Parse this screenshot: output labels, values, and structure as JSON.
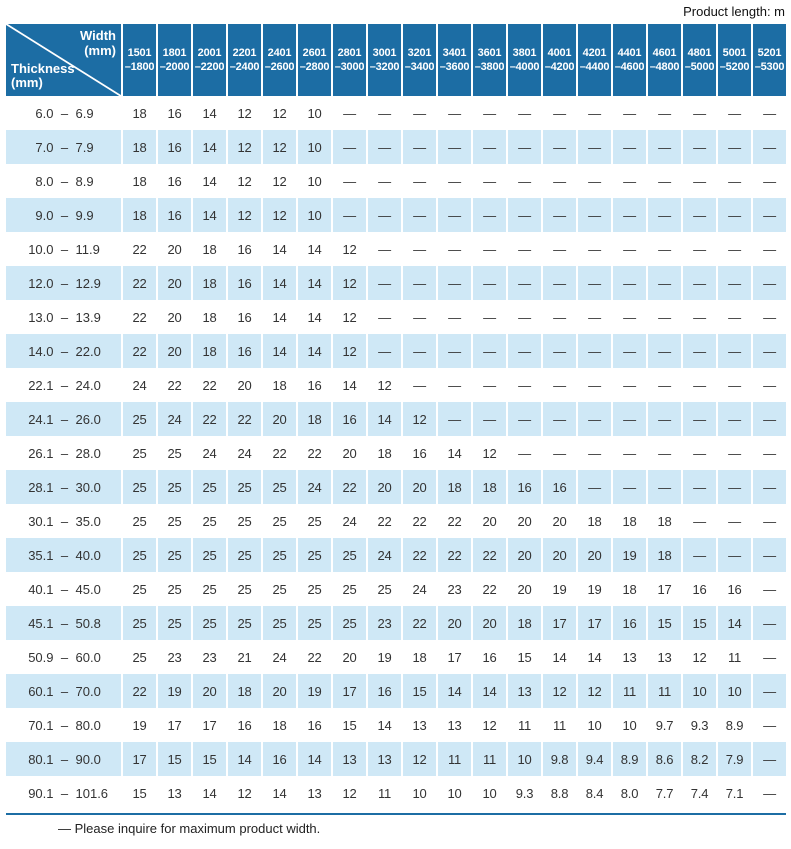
{
  "page": {
    "product_length_note": "Product length: m",
    "footer_note": "— Please inquire for maximum product width."
  },
  "colors": {
    "header_blue": "#1C6DA4",
    "stripe_blue": "#CFE8F6",
    "text": "#333333"
  },
  "table": {
    "corner": {
      "width_line1": "Width",
      "width_line2": "(mm)",
      "thickness_line1": "Thickness",
      "thickness_line2": "(mm)"
    },
    "range_separator": "–",
    "empty_marker": "—",
    "width_columns": [
      {
        "from": "1501",
        "to": "–1800"
      },
      {
        "from": "1801",
        "to": "–2000"
      },
      {
        "from": "2001",
        "to": "–2200"
      },
      {
        "from": "2201",
        "to": "–2400"
      },
      {
        "from": "2401",
        "to": "–2600"
      },
      {
        "from": "2601",
        "to": "–2800"
      },
      {
        "from": "2801",
        "to": "–3000"
      },
      {
        "from": "3001",
        "to": "–3200"
      },
      {
        "from": "3201",
        "to": "–3400"
      },
      {
        "from": "3401",
        "to": "–3600"
      },
      {
        "from": "3601",
        "to": "–3800"
      },
      {
        "from": "3801",
        "to": "–4000"
      },
      {
        "from": "4001",
        "to": "–4200"
      },
      {
        "from": "4201",
        "to": "–4400"
      },
      {
        "from": "4401",
        "to": "–4600"
      },
      {
        "from": "4601",
        "to": "–4800"
      },
      {
        "from": "4801",
        "to": "–5000"
      },
      {
        "from": "5001",
        "to": "–5200"
      },
      {
        "from": "5201",
        "to": "–5300"
      }
    ],
    "rows": [
      {
        "thickness_min": "6.0",
        "thickness_max": "6.9",
        "values": [
          "18",
          "16",
          "14",
          "12",
          "12",
          "10",
          "—",
          "—",
          "—",
          "—",
          "—",
          "—",
          "—",
          "—",
          "—",
          "—",
          "—",
          "—",
          "—"
        ]
      },
      {
        "thickness_min": "7.0",
        "thickness_max": "7.9",
        "values": [
          "18",
          "16",
          "14",
          "12",
          "12",
          "10",
          "—",
          "—",
          "—",
          "—",
          "—",
          "—",
          "—",
          "—",
          "—",
          "—",
          "—",
          "—",
          "—"
        ]
      },
      {
        "thickness_min": "8.0",
        "thickness_max": "8.9",
        "values": [
          "18",
          "16",
          "14",
          "12",
          "12",
          "10",
          "—",
          "—",
          "—",
          "—",
          "—",
          "—",
          "—",
          "—",
          "—",
          "—",
          "—",
          "—",
          "—"
        ]
      },
      {
        "thickness_min": "9.0",
        "thickness_max": "9.9",
        "values": [
          "18",
          "16",
          "14",
          "12",
          "12",
          "10",
          "—",
          "—",
          "—",
          "—",
          "—",
          "—",
          "—",
          "—",
          "—",
          "—",
          "—",
          "—",
          "—"
        ]
      },
      {
        "thickness_min": "10.0",
        "thickness_max": "11.9",
        "values": [
          "22",
          "20",
          "18",
          "16",
          "14",
          "14",
          "12",
          "—",
          "—",
          "—",
          "—",
          "—",
          "—",
          "—",
          "—",
          "—",
          "—",
          "—",
          "—"
        ]
      },
      {
        "thickness_min": "12.0",
        "thickness_max": "12.9",
        "values": [
          "22",
          "20",
          "18",
          "16",
          "14",
          "14",
          "12",
          "—",
          "—",
          "—",
          "—",
          "—",
          "—",
          "—",
          "—",
          "—",
          "—",
          "—",
          "—"
        ]
      },
      {
        "thickness_min": "13.0",
        "thickness_max": "13.9",
        "values": [
          "22",
          "20",
          "18",
          "16",
          "14",
          "14",
          "12",
          "—",
          "—",
          "—",
          "—",
          "—",
          "—",
          "—",
          "—",
          "—",
          "—",
          "—",
          "—"
        ]
      },
      {
        "thickness_min": "14.0",
        "thickness_max": "22.0",
        "values": [
          "22",
          "20",
          "18",
          "16",
          "14",
          "14",
          "12",
          "—",
          "—",
          "—",
          "—",
          "—",
          "—",
          "—",
          "—",
          "—",
          "—",
          "—",
          "—"
        ]
      },
      {
        "thickness_min": "22.1",
        "thickness_max": "24.0",
        "values": [
          "24",
          "22",
          "22",
          "20",
          "18",
          "16",
          "14",
          "12",
          "—",
          "—",
          "—",
          "—",
          "—",
          "—",
          "—",
          "—",
          "—",
          "—",
          "—"
        ]
      },
      {
        "thickness_min": "24.1",
        "thickness_max": "26.0",
        "values": [
          "25",
          "24",
          "22",
          "22",
          "20",
          "18",
          "16",
          "14",
          "12",
          "—",
          "—",
          "—",
          "—",
          "—",
          "—",
          "—",
          "—",
          "—",
          "—"
        ]
      },
      {
        "thickness_min": "26.1",
        "thickness_max": "28.0",
        "values": [
          "25",
          "25",
          "24",
          "24",
          "22",
          "22",
          "20",
          "18",
          "16",
          "14",
          "12",
          "—",
          "—",
          "—",
          "—",
          "—",
          "—",
          "—",
          "—"
        ]
      },
      {
        "thickness_min": "28.1",
        "thickness_max": "30.0",
        "values": [
          "25",
          "25",
          "25",
          "25",
          "25",
          "24",
          "22",
          "20",
          "20",
          "18",
          "18",
          "16",
          "16",
          "—",
          "—",
          "—",
          "—",
          "—",
          "—"
        ]
      },
      {
        "thickness_min": "30.1",
        "thickness_max": "35.0",
        "values": [
          "25",
          "25",
          "25",
          "25",
          "25",
          "25",
          "24",
          "22",
          "22",
          "22",
          "20",
          "20",
          "20",
          "18",
          "18",
          "18",
          "—",
          "—",
          "—"
        ]
      },
      {
        "thickness_min": "35.1",
        "thickness_max": "40.0",
        "values": [
          "25",
          "25",
          "25",
          "25",
          "25",
          "25",
          "25",
          "24",
          "22",
          "22",
          "22",
          "20",
          "20",
          "20",
          "19",
          "18",
          "—",
          "—",
          "—"
        ]
      },
      {
        "thickness_min": "40.1",
        "thickness_max": "45.0",
        "values": [
          "25",
          "25",
          "25",
          "25",
          "25",
          "25",
          "25",
          "25",
          "24",
          "23",
          "22",
          "20",
          "19",
          "19",
          "18",
          "17",
          "16",
          "16",
          "—"
        ]
      },
      {
        "thickness_min": "45.1",
        "thickness_max": "50.8",
        "values": [
          "25",
          "25",
          "25",
          "25",
          "25",
          "25",
          "25",
          "23",
          "22",
          "20",
          "20",
          "18",
          "17",
          "17",
          "16",
          "15",
          "15",
          "14",
          "—"
        ]
      },
      {
        "thickness_min": "50.9",
        "thickness_max": "60.0",
        "values": [
          "25",
          "23",
          "23",
          "21",
          "24",
          "22",
          "20",
          "19",
          "18",
          "17",
          "16",
          "15",
          "14",
          "14",
          "13",
          "13",
          "12",
          "11",
          "—"
        ]
      },
      {
        "thickness_min": "60.1",
        "thickness_max": "70.0",
        "values": [
          "22",
          "19",
          "20",
          "18",
          "20",
          "19",
          "17",
          "16",
          "15",
          "14",
          "14",
          "13",
          "12",
          "12",
          "11",
          "11",
          "10",
          "10",
          "—"
        ]
      },
      {
        "thickness_min": "70.1",
        "thickness_max": "80.0",
        "values": [
          "19",
          "17",
          "17",
          "16",
          "18",
          "16",
          "15",
          "14",
          "13",
          "13",
          "12",
          "11",
          "11",
          "10",
          "10",
          "9.7",
          "9.3",
          "8.9",
          "—"
        ]
      },
      {
        "thickness_min": "80.1",
        "thickness_max": "90.0",
        "values": [
          "17",
          "15",
          "15",
          "14",
          "16",
          "14",
          "13",
          "13",
          "12",
          "11",
          "11",
          "10",
          "9.8",
          "9.4",
          "8.9",
          "8.6",
          "8.2",
          "7.9",
          "—"
        ]
      },
      {
        "thickness_min": "90.1",
        "thickness_max": "101.6",
        "values": [
          "15",
          "13",
          "14",
          "12",
          "14",
          "13",
          "12",
          "11",
          "10",
          "10",
          "10",
          "9.3",
          "8.8",
          "8.4",
          "8.0",
          "7.7",
          "7.4",
          "7.1",
          "—"
        ]
      }
    ]
  }
}
